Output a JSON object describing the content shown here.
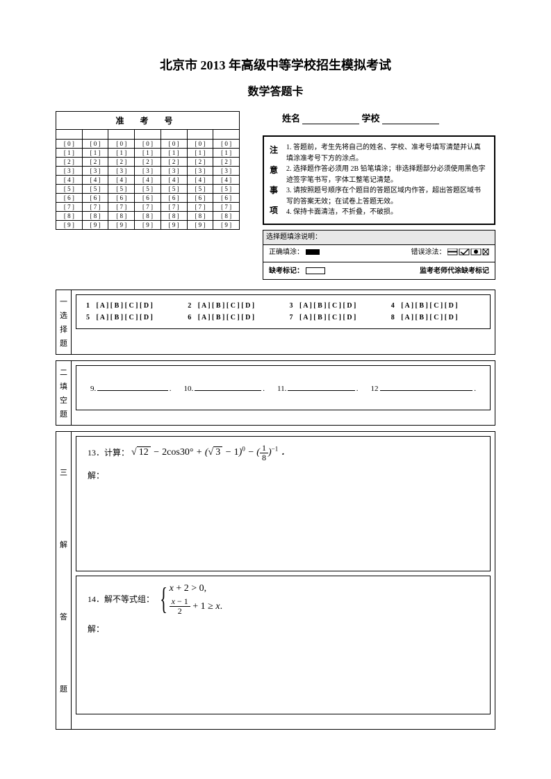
{
  "title_main": "北京市 2013 年高级中等学校招生模拟考试",
  "title_sub": "数学答题卡",
  "exam_num_header": "准   考   号",
  "name_label": "姓名",
  "school_label": "学校",
  "notice_heading": [
    "注",
    "意",
    "事",
    "项"
  ],
  "notice_items": [
    "1. 答题前，考生先将自己的姓名、学校、准考号填写清楚并认真填涂准考号下方的涂点。",
    "2. 选择题作答必须用 2B 铅笔填涂；非选择题部分必须使用黑色字迹签字笔书写，字体工整笔记清楚。",
    "3. 请按照题号顺序在个题目的答题区域内作答，超出答题区域书写的答案无效；在试卷上答题无效。",
    "4. 保持卡面清洁，不折叠，不破损。"
  ],
  "legend_title": "选择题填涂说明：",
  "legend_correct": "正确填涂：",
  "legend_wrong": "错误涂法：",
  "absent_label": "缺考标记：",
  "absent_right": "监考老师代涂缺考标记",
  "sections": {
    "s1_label": [
      "一",
      "选",
      "择",
      "题"
    ],
    "s2_label": [
      "二",
      "填",
      "空",
      "题"
    ],
    "s3_label": [
      "三",
      "解",
      "答",
      "题"
    ]
  },
  "mc_options": "[ A ] [ B ] [ C ] [ D ]",
  "mc_numbers": [
    "1",
    "2",
    "3",
    "4",
    "5",
    "6",
    "7",
    "8"
  ],
  "fill_numbers": [
    "9.",
    "10.",
    "11.",
    "12"
  ],
  "q13_label": "13．计算：",
  "q13_answer_label": "解：",
  "q14_label": "14．解不等式组：",
  "q14_ineq1_lhs": "x + 2 > 0,",
  "q14_ineq2_num": "x − 1",
  "q14_ineq2_den": "2",
  "q14_ineq2_tail": " + 1 ≥ x.",
  "q14_answer_label": "解：",
  "digits": [
    "0",
    "1",
    "2",
    "3",
    "4",
    "5",
    "6",
    "7",
    "8",
    "9"
  ],
  "num_cols": 7,
  "colors": {
    "border": "#000000",
    "background": "#ffffff",
    "legend_bg": "#e8e8e8"
  }
}
